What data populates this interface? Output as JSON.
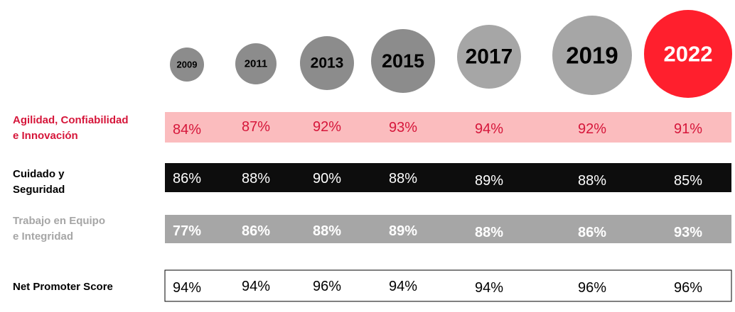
{
  "chart_data": {
    "type": "table",
    "years": [
      "2009",
      "2011",
      "2013",
      "2015",
      "2017",
      "2019",
      "2022"
    ],
    "rows": [
      {
        "label": "Agilidad, Confiabilidad\ne Innovación",
        "values": [
          "84%",
          "87%",
          "92%",
          "93%",
          "94%",
          "92%",
          "91%"
        ]
      },
      {
        "label": "Cuidado  y\nSeguridad",
        "values": [
          "86%",
          "88%",
          "90%",
          "88%",
          "89%",
          "88%",
          "85%"
        ]
      },
      {
        "label": "Trabajo en Equipo\ne Integridad",
        "values": [
          "77%",
          "86%",
          "88%",
          "89%",
          "88%",
          "86%",
          "93%"
        ]
      },
      {
        "label": "Net Promoter Score",
        "values": [
          "94%",
          "94%",
          "96%",
          "94%",
          "94%",
          "96%",
          "96%"
        ]
      }
    ],
    "colors": {
      "row_agilidad_bg": "#fbbcbe",
      "row_agilidad_text": "#d6163a",
      "row_cuidado_bg": "#0d0d0d",
      "row_cuidado_text": "#ffffff",
      "row_trabajo_bg": "#a6a6a6",
      "row_trabajo_text": "#ffffff",
      "row_nps_border": "#000000",
      "circle_gray_dark": "#8c8c8c",
      "circle_gray_light": "#a6a6a6",
      "circle_highlight": "#ff1f2d"
    }
  }
}
